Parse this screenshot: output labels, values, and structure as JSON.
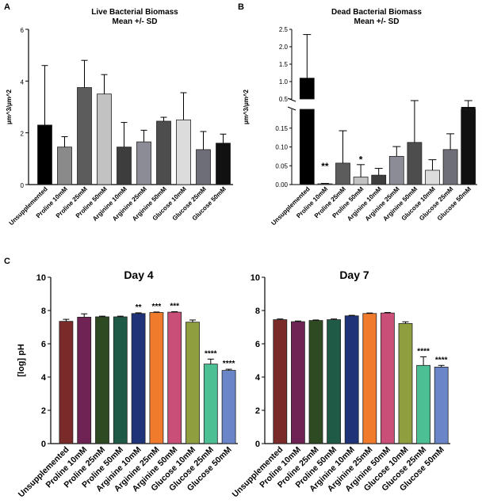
{
  "chart_data": [
    {
      "panel": "A",
      "type": "bar",
      "title": "Live Bacterial Biomass",
      "subtitle": "Mean +/- SD",
      "xlabel": "",
      "ylabel": "µm^3/µm^2",
      "ylim": [
        0,
        6
      ],
      "yticks": [
        "0",
        "2",
        "4",
        "6"
      ],
      "categories": [
        "Unsupplemented",
        "Proline 10mM",
        "Proline 25mM",
        "Proline 50mM",
        "Arginine 10mM",
        "Arginine 25mM",
        "Arginine 50mM",
        "Glucose 10mM",
        "Glucose 25mM",
        "Glucose 50mM"
      ],
      "values": [
        2.3,
        1.45,
        3.75,
        3.5,
        1.45,
        1.65,
        2.45,
        2.5,
        1.35,
        1.6
      ],
      "errors": [
        2.3,
        0.4,
        1.05,
        0.75,
        0.95,
        0.45,
        0.15,
        1.05,
        0.7,
        0.35
      ],
      "colors": [
        "#000000",
        "#8a8a8a",
        "#5c5c5c",
        "#c2c2c2",
        "#3d3d3d",
        "#8c8c96",
        "#4d4d4d",
        "#dcdcdc",
        "#6e6e78",
        "#111111"
      ],
      "annotations": []
    },
    {
      "panel": "B",
      "type": "bar",
      "title": "Dead Bacterial Biomass",
      "subtitle": "Mean +/- SD",
      "xlabel": "",
      "ylabel": "µm^3/µm^2",
      "broken_axis": true,
      "ylim_lower": [
        0,
        0.2
      ],
      "ylim_upper": [
        0.5,
        2.5
      ],
      "yticks_lower": [
        "0.00",
        "0.05",
        "0.10",
        "0.15"
      ],
      "yticks_upper": [
        "0.5",
        "1.0",
        "1.5",
        "2.0",
        "2.5"
      ],
      "categories": [
        "Unsupplemented",
        "Proline 10mM",
        "Proline 25mM",
        "Proline 50mM",
        "Arginine 10mM",
        "Arginine 25mM",
        "Arginine 50mM",
        "Glucose 10mM",
        "Glucose 25mM",
        "Glucose 50mM"
      ],
      "values": [
        1.1,
        0.002,
        0.057,
        0.02,
        0.025,
        0.075,
        0.112,
        0.038,
        0.093,
        0.4
      ],
      "errors": [
        1.25,
        0.001,
        0.086,
        0.033,
        0.018,
        0.026,
        0.188,
        0.028,
        0.042,
        0.05
      ],
      "colors": [
        "#000000",
        "#8a8a8a",
        "#5c5c5c",
        "#c2c2c2",
        "#3d3d3d",
        "#8c8c96",
        "#4d4d4d",
        "#dcdcdc",
        "#6e6e78",
        "#111111"
      ],
      "annotations": [
        "",
        "**",
        "",
        "*",
        "",
        "",
        "",
        "",
        "",
        ""
      ]
    },
    {
      "panel": "C",
      "type": "bar",
      "title": "Day 4",
      "xlabel": "",
      "ylabel": "[log] pH",
      "ylim": [
        0,
        10
      ],
      "yticks": [
        "0",
        "2",
        "4",
        "6",
        "8",
        "10"
      ],
      "categories": [
        "Unsupplemented",
        "Proline 10mM",
        "Proline 25mM",
        "Proline 50mM",
        "Arginine 10mM",
        "Arginine 25mM",
        "Arginine 50mM",
        "Glucose 10mM",
        "Glucose 25mM",
        "Glucose 50mM"
      ],
      "values": [
        7.35,
        7.6,
        7.62,
        7.62,
        7.82,
        7.88,
        7.9,
        7.3,
        4.78,
        4.4
      ],
      "errors": [
        0.12,
        0.2,
        0.04,
        0.04,
        0.04,
        0.03,
        0.03,
        0.13,
        0.3,
        0.07
      ],
      "colors": [
        "#7b2a2a",
        "#6e2354",
        "#2e4a22",
        "#1f5a46",
        "#1f3478",
        "#f07b2c",
        "#c94f79",
        "#8f9e3f",
        "#4cbf95",
        "#6a86c9"
      ],
      "annotations": [
        "",
        "",
        "",
        "",
        "**",
        "***",
        "***",
        "",
        "****",
        "****"
      ]
    },
    {
      "type": "bar",
      "title": "Day 7",
      "xlabel": "",
      "ylabel": "",
      "ylim": [
        0,
        10
      ],
      "yticks": [
        "0",
        "2",
        "4",
        "6",
        "8",
        "10"
      ],
      "categories": [
        "Unsupplemented",
        "Proline 10mM",
        "Proline 25mM",
        "Proline 50mM",
        "Arginine 10mM",
        "Arginine 25mM",
        "Arginine 50mM",
        "Glucose 10mM",
        "Glucose 25mM",
        "Glucose 50mM"
      ],
      "values": [
        7.45,
        7.33,
        7.4,
        7.45,
        7.68,
        7.82,
        7.85,
        7.22,
        4.7,
        4.6
      ],
      "errors": [
        0.04,
        0.04,
        0.03,
        0.04,
        0.03,
        0.03,
        0.03,
        0.1,
        0.52,
        0.1
      ],
      "colors": [
        "#7b2a2a",
        "#6e2354",
        "#2e4a22",
        "#1f5a46",
        "#1f3478",
        "#f07b2c",
        "#c94f79",
        "#8f9e3f",
        "#4cbf95",
        "#6a86c9"
      ],
      "annotations": [
        "",
        "",
        "",
        "",
        "",
        "",
        "",
        "",
        "****",
        "****"
      ]
    }
  ]
}
